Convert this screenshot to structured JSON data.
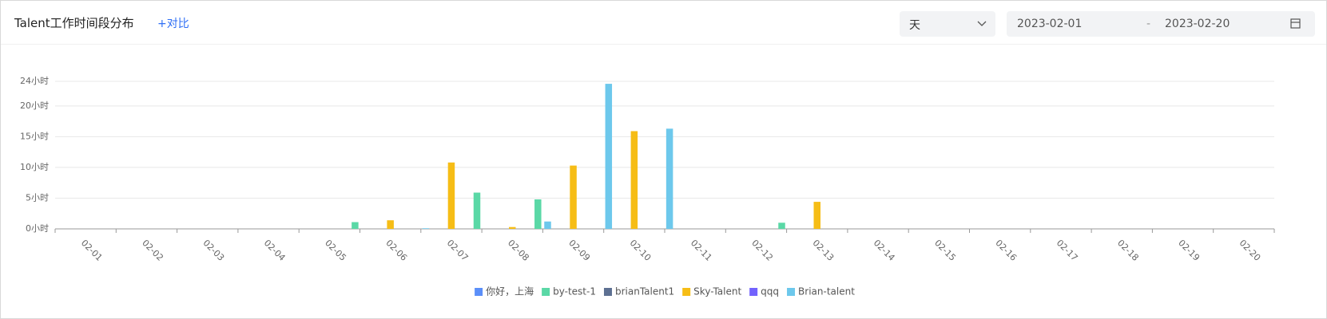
{
  "header": {
    "title": "Talent工作时间段分布",
    "compare": "+对比",
    "granularity": "天",
    "date_start": "2023-02-01",
    "date_sep": "-",
    "date_end": "2023-02-20"
  },
  "chart_data": {
    "type": "bar",
    "categories": [
      "02-01",
      "02-02",
      "02-03",
      "02-04",
      "02-05",
      "02-06",
      "02-07",
      "02-08",
      "02-09",
      "02-10",
      "02-11",
      "02-12",
      "02-13",
      "02-14",
      "02-15",
      "02-16",
      "02-17",
      "02-18",
      "02-19",
      "02-20"
    ],
    "series": [
      {
        "name": "你好，上海",
        "color": "#5b8ff9",
        "values": [
          0,
          0,
          0,
          0,
          0,
          0,
          0,
          0,
          0,
          0,
          0,
          0,
          0,
          0,
          0,
          0,
          0,
          0,
          0,
          0
        ]
      },
      {
        "name": "by-test-1",
        "color": "#5ad8a6",
        "values": [
          0,
          0,
          0,
          0,
          0,
          1.1,
          0,
          5.9,
          4.8,
          0,
          0,
          0,
          1,
          0,
          0,
          0,
          0,
          0,
          0,
          0
        ]
      },
      {
        "name": "brianTalent1",
        "color": "#5d7092",
        "values": [
          0,
          0,
          0,
          0,
          0,
          0,
          0,
          0,
          0,
          0,
          0,
          0,
          0,
          0,
          0,
          0,
          0,
          0,
          0,
          0
        ]
      },
      {
        "name": "Sky-Talent",
        "color": "#f6bd16",
        "values": [
          0,
          0,
          0,
          0,
          0,
          1.4,
          10.8,
          0.3,
          10.3,
          15.9,
          0,
          0,
          4.4,
          0,
          0,
          0,
          0,
          0,
          0,
          0
        ]
      },
      {
        "name": "qqq",
        "color": "#7262fd",
        "values": [
          0,
          0,
          0,
          0,
          0,
          0,
          0,
          0,
          0,
          0,
          0,
          0,
          0,
          0,
          0,
          0,
          0,
          0,
          0,
          0
        ]
      },
      {
        "name": "Brian-talent",
        "color": "#6dc8ec",
        "values": [
          0,
          0,
          0,
          0,
          0,
          0.1,
          0,
          1.2,
          23.6,
          16.3,
          0,
          0,
          0,
          0,
          0,
          0,
          0,
          0,
          0,
          0
        ]
      }
    ],
    "ylim": [
      0,
      24
    ],
    "yticks": [
      {
        "value": 0,
        "label": "0小时"
      },
      {
        "value": 5,
        "label": "5小时"
      },
      {
        "value": 10,
        "label": "10小时"
      },
      {
        "value": 15,
        "label": "15小时"
      },
      {
        "value": 20,
        "label": "20小时"
      },
      {
        "value": 24,
        "label": "24小时"
      }
    ],
    "grid": true,
    "legend": "bottom"
  }
}
